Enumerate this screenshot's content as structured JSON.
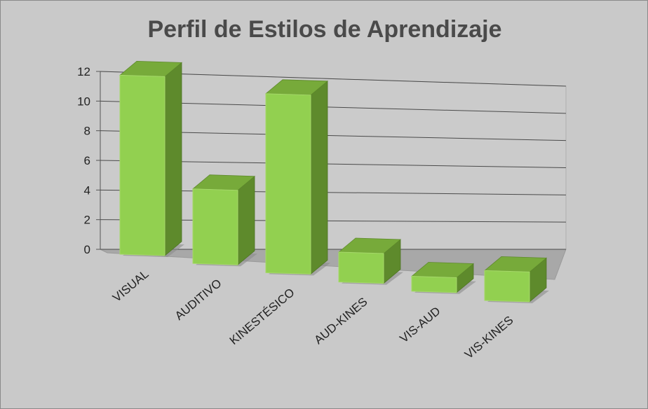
{
  "chart_data": {
    "type": "bar",
    "title": "Perfil de Estilos de Aprendizaje",
    "categories": [
      "VISUAL",
      "AUDITIVO",
      "KINESTÉSICO",
      "AUD-KINES",
      "VIS-AUD",
      "VIS-KINES"
    ],
    "values": [
      12,
      5,
      12,
      2,
      1,
      2
    ],
    "ylim": [
      0,
      12
    ],
    "yticks": [
      "0",
      "2",
      "4",
      "6",
      "8",
      "10",
      "12"
    ],
    "grid": true,
    "legend": "none",
    "colors": {
      "front": "#92d050",
      "side": "#5e8a2c",
      "top": "#77aa3a",
      "floor": "#a9a9a9",
      "background": "#c9c9c9"
    }
  }
}
